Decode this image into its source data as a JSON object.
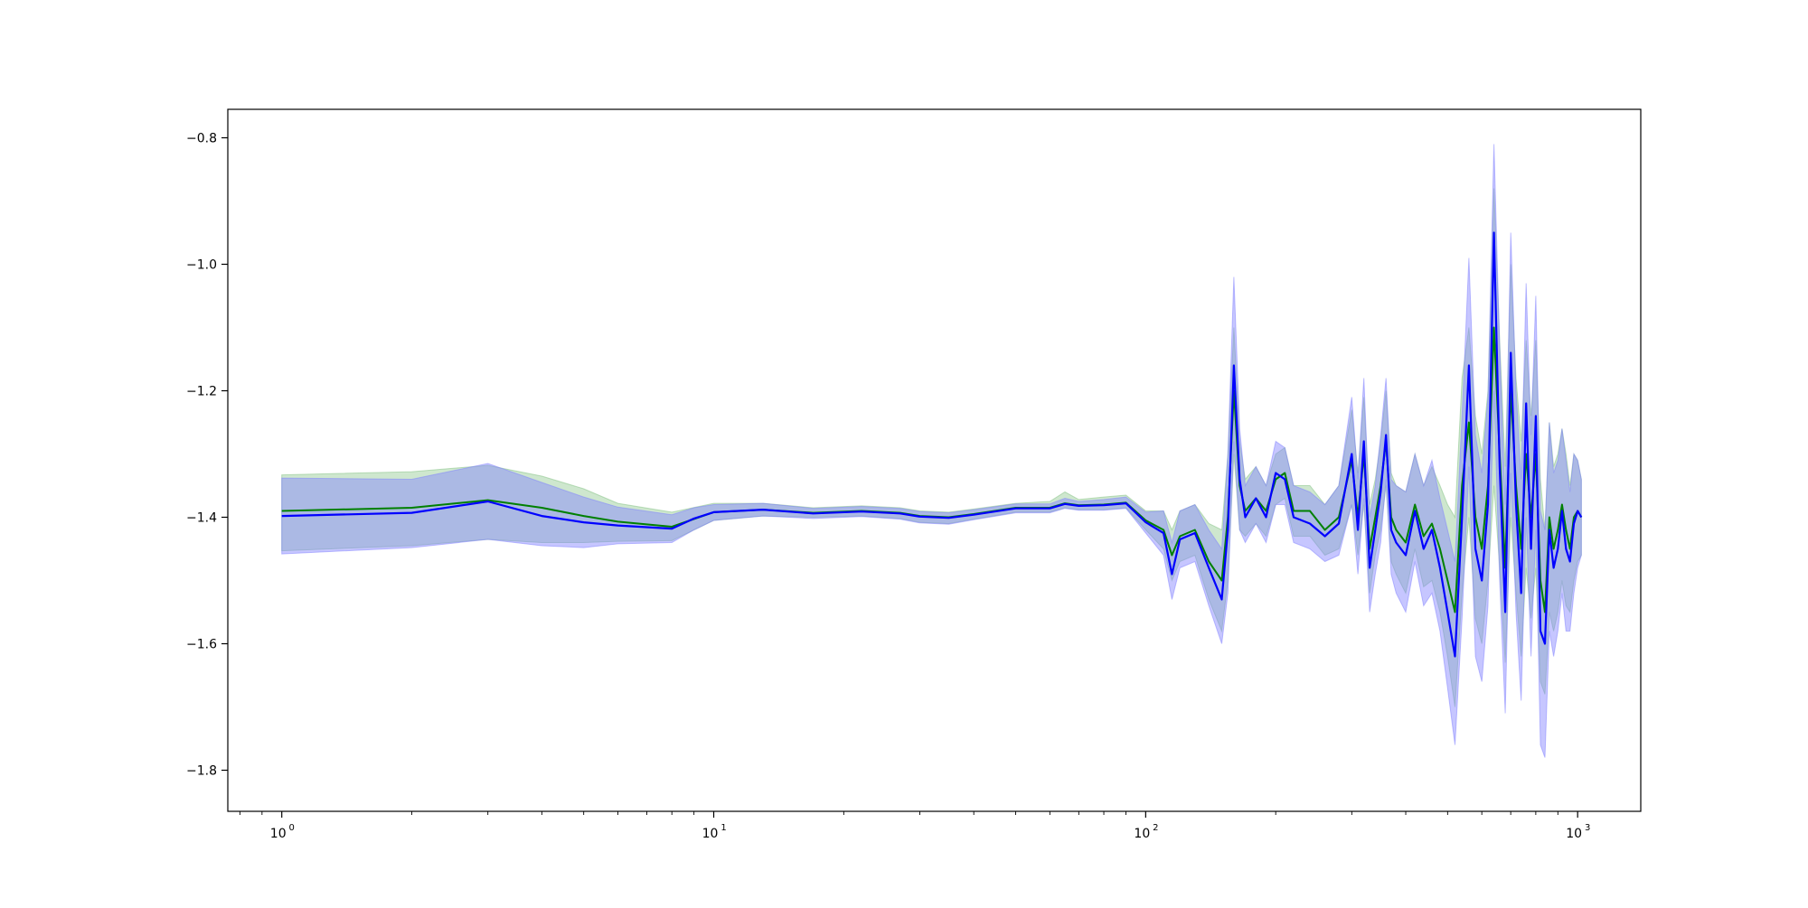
{
  "colors": {
    "green": "#008000",
    "blue": "#0000ff",
    "green_band": "#7fbf7f",
    "blue_band": "#8080ff",
    "overlap_band": "#6f8fbf",
    "axes": "#000000",
    "background": "#ffffff"
  },
  "chart_data": {
    "type": "line",
    "title": "",
    "xlabel": "",
    "ylabel": "",
    "x_scale": "log",
    "xlim": [
      0.75,
      1400
    ],
    "ylim": [
      -1.865,
      -0.755
    ],
    "grid": false,
    "legend": "none",
    "x_ticks": [
      {
        "value": 1,
        "label": "10",
        "exp": "0"
      },
      {
        "value": 10,
        "label": "10",
        "exp": "1"
      },
      {
        "value": 100,
        "label": "10",
        "exp": "2"
      },
      {
        "value": 1000,
        "label": "10",
        "exp": "3"
      }
    ],
    "y_ticks": [
      {
        "value": -0.8,
        "label": "−0.8"
      },
      {
        "value": -1.0,
        "label": "−1.0"
      },
      {
        "value": -1.2,
        "label": "−1.2"
      },
      {
        "value": -1.4,
        "label": "−1.4"
      },
      {
        "value": -1.6,
        "label": "−1.6"
      },
      {
        "value": -1.8,
        "label": "−1.8"
      }
    ],
    "series": [
      {
        "color": "green",
        "band_color": "green_band",
        "x": [
          1,
          2,
          3,
          4,
          5,
          6,
          8,
          10,
          13,
          17,
          22,
          27,
          30,
          35,
          40,
          50,
          60,
          65,
          70,
          80,
          90,
          100,
          110,
          115,
          120,
          130,
          140,
          150,
          155,
          160,
          165,
          170,
          180,
          190,
          200,
          210,
          220,
          240,
          260,
          280,
          300,
          310,
          320,
          330,
          340,
          350,
          360,
          370,
          380,
          400,
          420,
          440,
          460,
          480,
          500,
          520,
          540,
          560,
          580,
          600,
          620,
          640,
          660,
          680,
          700,
          720,
          740,
          760,
          780,
          800,
          820,
          840,
          860,
          880,
          900,
          920,
          940,
          960,
          980,
          1000,
          1020
        ],
        "y": [
          -1.39,
          -1.385,
          -1.373,
          -1.385,
          -1.398,
          -1.407,
          -1.415,
          -1.392,
          -1.388,
          -1.393,
          -1.39,
          -1.393,
          -1.398,
          -1.4,
          -1.395,
          -1.385,
          -1.385,
          -1.378,
          -1.381,
          -1.38,
          -1.377,
          -1.405,
          -1.42,
          -1.46,
          -1.43,
          -1.42,
          -1.47,
          -1.5,
          -1.4,
          -1.2,
          -1.35,
          -1.39,
          -1.37,
          -1.39,
          -1.34,
          -1.33,
          -1.39,
          -1.39,
          -1.42,
          -1.4,
          -1.31,
          -1.4,
          -1.3,
          -1.45,
          -1.4,
          -1.35,
          -1.28,
          -1.4,
          -1.42,
          -1.44,
          -1.38,
          -1.43,
          -1.41,
          -1.45,
          -1.5,
          -1.55,
          -1.35,
          -1.25,
          -1.4,
          -1.45,
          -1.35,
          -1.1,
          -1.3,
          -1.48,
          -1.2,
          -1.35,
          -1.45,
          -1.3,
          -1.4,
          -1.3,
          -1.5,
          -1.55,
          -1.4,
          -1.45,
          -1.42,
          -1.38,
          -1.42,
          -1.45,
          -1.4,
          -1.39,
          -1.4
        ],
        "lower": [
          -1.453,
          -1.445,
          -1.435,
          -1.44,
          -1.44,
          -1.438,
          -1.437,
          -1.405,
          -1.398,
          -1.4,
          -1.398,
          -1.402,
          -1.408,
          -1.41,
          -1.403,
          -1.392,
          -1.392,
          -1.385,
          -1.388,
          -1.388,
          -1.385,
          -1.42,
          -1.45,
          -1.5,
          -1.47,
          -1.46,
          -1.53,
          -1.58,
          -1.5,
          -1.3,
          -1.42,
          -1.43,
          -1.41,
          -1.43,
          -1.38,
          -1.37,
          -1.43,
          -1.43,
          -1.46,
          -1.45,
          -1.38,
          -1.46,
          -1.38,
          -1.52,
          -1.46,
          -1.42,
          -1.35,
          -1.47,
          -1.49,
          -1.52,
          -1.45,
          -1.51,
          -1.5,
          -1.55,
          -1.62,
          -1.7,
          -1.52,
          -1.4,
          -1.56,
          -1.6,
          -1.5,
          -1.35,
          -1.48,
          -1.63,
          -1.4,
          -1.52,
          -1.62,
          -1.48,
          -1.56,
          -1.48,
          -1.66,
          -1.68,
          -1.55,
          -1.58,
          -1.55,
          -1.5,
          -1.54,
          -1.55,
          -1.5,
          -1.47,
          -1.46
        ],
        "upper": [
          -1.333,
          -1.328,
          -1.318,
          -1.335,
          -1.355,
          -1.378,
          -1.392,
          -1.378,
          -1.378,
          -1.385,
          -1.382,
          -1.385,
          -1.39,
          -1.392,
          -1.387,
          -1.378,
          -1.375,
          -1.36,
          -1.372,
          -1.368,
          -1.365,
          -1.39,
          -1.39,
          -1.42,
          -1.39,
          -1.38,
          -1.41,
          -1.42,
          -1.3,
          -1.1,
          -1.28,
          -1.34,
          -1.32,
          -1.35,
          -1.3,
          -1.29,
          -1.35,
          -1.35,
          -1.38,
          -1.35,
          -1.23,
          -1.33,
          -1.21,
          -1.38,
          -1.34,
          -1.28,
          -1.2,
          -1.33,
          -1.35,
          -1.36,
          -1.3,
          -1.35,
          -1.32,
          -1.35,
          -1.38,
          -1.4,
          -1.18,
          -1.1,
          -1.24,
          -1.3,
          -1.2,
          -0.88,
          -1.12,
          -1.32,
          -1.0,
          -1.18,
          -1.28,
          -1.12,
          -1.24,
          -1.12,
          -1.34,
          -1.42,
          -1.25,
          -1.32,
          -1.3,
          -1.26,
          -1.3,
          -1.35,
          -1.3,
          -1.31,
          -1.34
        ]
      },
      {
        "color": "blue",
        "band_color": "blue_band",
        "x": [
          1,
          2,
          3,
          4,
          5,
          6,
          8,
          9,
          10,
          13,
          17,
          22,
          27,
          30,
          35,
          40,
          50,
          60,
          65,
          70,
          80,
          90,
          100,
          110,
          115,
          120,
          130,
          140,
          150,
          155,
          160,
          165,
          170,
          180,
          190,
          200,
          210,
          220,
          240,
          260,
          280,
          300,
          310,
          320,
          330,
          340,
          350,
          360,
          370,
          380,
          400,
          420,
          440,
          460,
          480,
          500,
          520,
          540,
          560,
          580,
          600,
          620,
          640,
          660,
          680,
          700,
          720,
          740,
          760,
          780,
          800,
          820,
          840,
          860,
          880,
          900,
          920,
          940,
          960,
          980,
          1000,
          1020
        ],
        "y": [
          -1.398,
          -1.393,
          -1.375,
          -1.398,
          -1.408,
          -1.413,
          -1.418,
          -1.402,
          -1.392,
          -1.388,
          -1.394,
          -1.391,
          -1.394,
          -1.399,
          -1.401,
          -1.396,
          -1.386,
          -1.386,
          -1.379,
          -1.382,
          -1.381,
          -1.378,
          -1.408,
          -1.425,
          -1.49,
          -1.435,
          -1.425,
          -1.48,
          -1.53,
          -1.42,
          -1.16,
          -1.34,
          -1.4,
          -1.37,
          -1.4,
          -1.33,
          -1.34,
          -1.4,
          -1.41,
          -1.43,
          -1.41,
          -1.3,
          -1.42,
          -1.28,
          -1.48,
          -1.42,
          -1.36,
          -1.27,
          -1.42,
          -1.44,
          -1.46,
          -1.39,
          -1.45,
          -1.42,
          -1.48,
          -1.55,
          -1.62,
          -1.4,
          -1.16,
          -1.45,
          -1.5,
          -1.38,
          -0.95,
          -1.32,
          -1.55,
          -1.14,
          -1.38,
          -1.52,
          -1.22,
          -1.45,
          -1.24,
          -1.58,
          -1.6,
          -1.42,
          -1.48,
          -1.45,
          -1.39,
          -1.45,
          -1.47,
          -1.41,
          -1.39,
          -1.4
        ],
        "lower": [
          -1.458,
          -1.448,
          -1.435,
          -1.445,
          -1.448,
          -1.442,
          -1.44,
          -1.42,
          -1.405,
          -1.398,
          -1.402,
          -1.399,
          -1.403,
          -1.409,
          -1.411,
          -1.404,
          -1.393,
          -1.393,
          -1.386,
          -1.389,
          -1.389,
          -1.386,
          -1.425,
          -1.46,
          -1.53,
          -1.48,
          -1.47,
          -1.54,
          -1.6,
          -1.52,
          -1.28,
          -1.42,
          -1.44,
          -1.41,
          -1.44,
          -1.38,
          -1.38,
          -1.44,
          -1.45,
          -1.47,
          -1.46,
          -1.38,
          -1.49,
          -1.37,
          -1.55,
          -1.49,
          -1.44,
          -1.34,
          -1.49,
          -1.52,
          -1.55,
          -1.47,
          -1.54,
          -1.52,
          -1.58,
          -1.67,
          -1.76,
          -1.56,
          -1.32,
          -1.62,
          -1.66,
          -1.54,
          -1.2,
          -1.5,
          -1.71,
          -1.33,
          -1.55,
          -1.69,
          -1.4,
          -1.62,
          -1.42,
          -1.76,
          -1.78,
          -1.58,
          -1.62,
          -1.58,
          -1.52,
          -1.58,
          -1.58,
          -1.52,
          -1.48,
          -1.46
        ],
        "upper": [
          -1.338,
          -1.34,
          -1.315,
          -1.345,
          -1.368,
          -1.384,
          -1.396,
          -1.385,
          -1.38,
          -1.378,
          -1.386,
          -1.383,
          -1.386,
          -1.391,
          -1.393,
          -1.388,
          -1.379,
          -1.379,
          -1.37,
          -1.375,
          -1.372,
          -1.368,
          -1.392,
          -1.39,
          -1.44,
          -1.39,
          -1.38,
          -1.42,
          -1.45,
          -1.3,
          -1.02,
          -1.26,
          -1.35,
          -1.32,
          -1.35,
          -1.28,
          -1.29,
          -1.35,
          -1.36,
          -1.38,
          -1.35,
          -1.21,
          -1.34,
          -1.18,
          -1.4,
          -1.35,
          -1.27,
          -1.18,
          -1.34,
          -1.35,
          -1.36,
          -1.3,
          -1.35,
          -1.31,
          -1.37,
          -1.42,
          -1.47,
          -1.24,
          -0.99,
          -1.27,
          -1.33,
          -1.21,
          -0.81,
          -1.13,
          -1.38,
          -0.95,
          -1.2,
          -1.34,
          -1.03,
          -1.27,
          -1.05,
          -1.39,
          -1.42,
          -1.25,
          -1.33,
          -1.31,
          -1.26,
          -1.31,
          -1.36,
          -1.3,
          -1.31,
          -1.34
        ]
      }
    ]
  }
}
